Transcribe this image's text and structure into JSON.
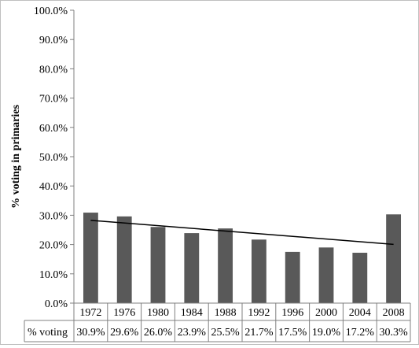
{
  "chart_data": {
    "type": "bar",
    "ylabel": "% voting in primaries",
    "yticks": [
      "0.0%",
      "10.0%",
      "20.0%",
      "30.0%",
      "40.0%",
      "50.0%",
      "60.0%",
      "70.0%",
      "80.0%",
      "90.0%",
      "100.0%"
    ],
    "ylim": [
      0,
      100
    ],
    "categories": [
      "1972",
      "1976",
      "1980",
      "1984",
      "1988",
      "1992",
      "1996",
      "2000",
      "2004",
      "2008"
    ],
    "series": [
      {
        "name": "% voting",
        "values": [
          30.9,
          29.6,
          26.0,
          23.9,
          25.5,
          21.7,
          17.5,
          19.0,
          17.2,
          30.3
        ],
        "labels": [
          "30.9%",
          "29.6%",
          "26.0%",
          "23.9%",
          "25.5%",
          "21.7%",
          "17.5%",
          "19.0%",
          "17.2%",
          "30.3%"
        ],
        "color": "#595959"
      }
    ],
    "trendline": {
      "type": "linear",
      "color": "#000000"
    },
    "data_table": true,
    "grid": false
  }
}
